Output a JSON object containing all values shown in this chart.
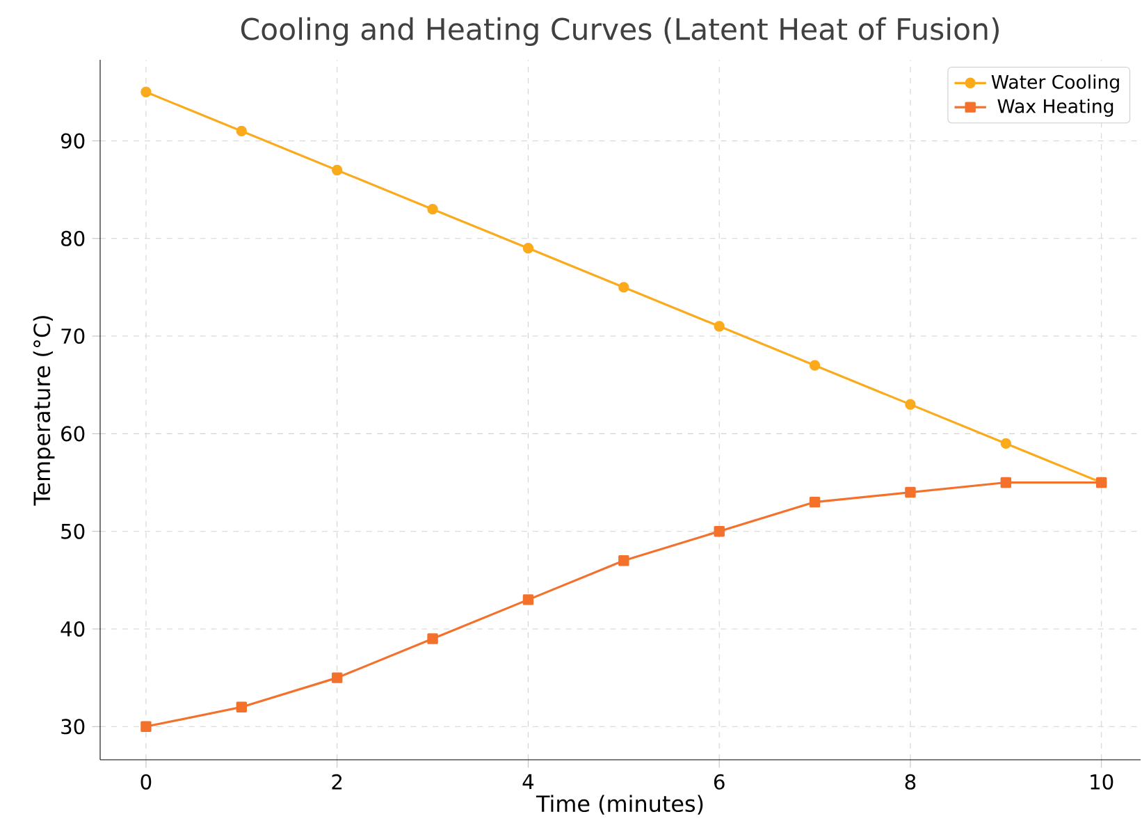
{
  "chart_data": {
    "type": "line",
    "title": "Cooling and Heating Curves (Latent Heat of Fusion)",
    "xlabel": "Time (minutes)",
    "ylabel": "Temperature (°C)",
    "x": [
      0,
      1,
      2,
      3,
      4,
      5,
      6,
      7,
      8,
      9,
      10
    ],
    "series": [
      {
        "name": "Water Cooling",
        "color": "#fbaa1c",
        "marker": "circle",
        "values": [
          95,
          91,
          87,
          83,
          79,
          75,
          71,
          67,
          63,
          59,
          55
        ]
      },
      {
        "name": "Wax Heating",
        "color": "#f3712b",
        "marker": "square",
        "values": [
          30,
          32,
          35,
          39,
          43,
          47,
          50,
          53,
          54,
          55,
          55
        ]
      }
    ],
    "xlim": [
      -0.48,
      10.41
    ],
    "ylim": [
      26.6,
      98.3
    ],
    "xticks": [
      0,
      2,
      4,
      6,
      8,
      10
    ],
    "yticks": [
      30,
      40,
      50,
      60,
      70,
      80,
      90
    ],
    "grid": true,
    "legend": "top right",
    "line_style": "solid"
  }
}
